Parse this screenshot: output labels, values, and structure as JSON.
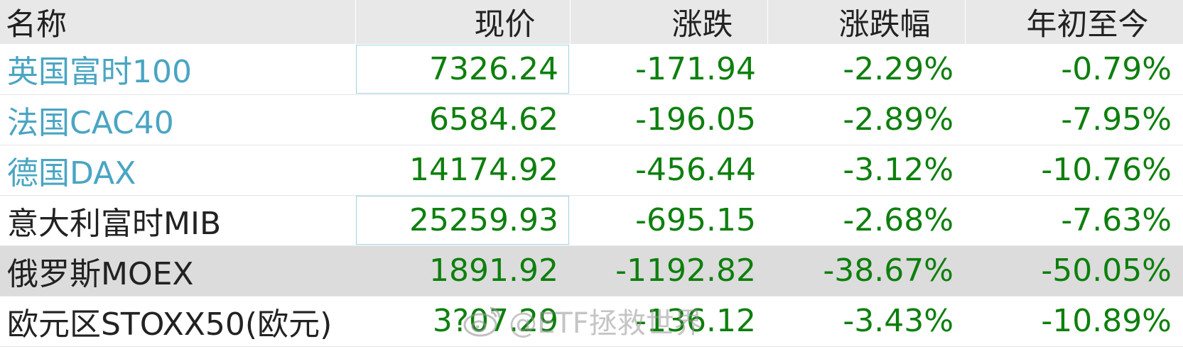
{
  "columns": {
    "name": "名称",
    "price": "现价",
    "change": "涨跌",
    "change_pct": "涨跌幅",
    "ytd": "年初至今"
  },
  "rows": [
    {
      "name": "英国富时100",
      "price": "7326.24",
      "change": "-171.94",
      "change_pct": "-2.29%",
      "ytd": "-0.79%"
    },
    {
      "name": "法国CAC40",
      "price": "6584.62",
      "change": "-196.05",
      "change_pct": "-2.89%",
      "ytd": "-7.95%"
    },
    {
      "name": "德国DAX",
      "price": "14174.92",
      "change": "-456.44",
      "change_pct": "-3.12%",
      "ytd": "-10.76%"
    },
    {
      "name": "意大利富时MIB",
      "price": "25259.93",
      "change": "-695.15",
      "change_pct": "-2.68%",
      "ytd": "-7.63%"
    },
    {
      "name": "俄罗斯MOEX",
      "price": "1891.92",
      "change": "-1192.82",
      "change_pct": "-38.67%",
      "ytd": "-50.05%"
    },
    {
      "name": "欧元区STOXX50(欧元)",
      "price": "3?07.29",
      "change": "-136.12",
      "change_pct": "-3.43%",
      "ytd": "-10.89%"
    }
  ],
  "colors": {
    "link": "#4aa5c3",
    "negative": "#0d7f0d",
    "header_bg": "#e8e8e8",
    "highlight_bg": "#dcdcdc"
  },
  "watermark": {
    "text": "@ETF拯救世界",
    "icon": "weibo-icon"
  }
}
